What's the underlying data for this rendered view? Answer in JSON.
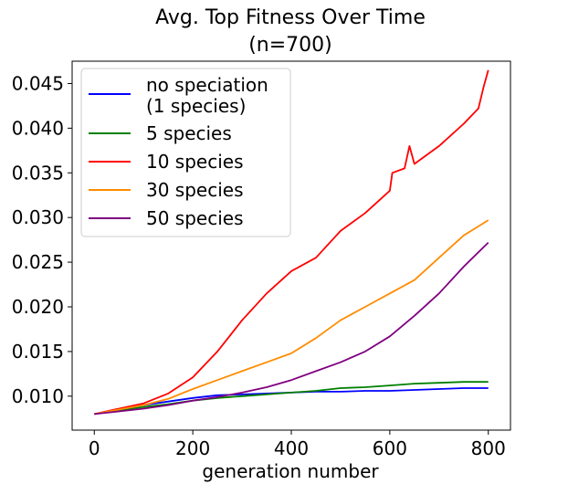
{
  "chart_data": {
    "type": "line",
    "title": "Avg. Top Fitness Over Time",
    "subtitle": "(n=700)",
    "xlabel": "generation number",
    "ylabel": "",
    "xlim": [
      -45,
      845
    ],
    "ylim": [
      0.0062,
      0.0475
    ],
    "xticks": [
      0,
      200,
      400,
      600,
      800
    ],
    "xtick_labels": [
      "0",
      "200",
      "400",
      "600",
      "800"
    ],
    "yticks": [
      0.01,
      0.015,
      0.02,
      0.025,
      0.03,
      0.035,
      0.04,
      0.045
    ],
    "ytick_labels": [
      "0.010",
      "0.015",
      "0.020",
      "0.025",
      "0.030",
      "0.035",
      "0.040",
      "0.045"
    ],
    "grid": false,
    "legend_position": "top-left",
    "series": [
      {
        "name": "no speciation\n(1 species)",
        "color": "#0000ff",
        "x": [
          0,
          50,
          100,
          150,
          200,
          250,
          300,
          350,
          400,
          450,
          500,
          550,
          600,
          650,
          700,
          750,
          800
        ],
        "y": [
          0.008,
          0.0085,
          0.009,
          0.0094,
          0.0098,
          0.0101,
          0.0102,
          0.0103,
          0.0104,
          0.0105,
          0.0105,
          0.0106,
          0.0106,
          0.0107,
          0.0108,
          0.0109,
          0.0109
        ]
      },
      {
        "name": "5 species",
        "color": "#008000",
        "x": [
          0,
          50,
          100,
          150,
          200,
          250,
          300,
          350,
          400,
          450,
          500,
          550,
          600,
          650,
          700,
          750,
          800
        ],
        "y": [
          0.008,
          0.0084,
          0.0088,
          0.0091,
          0.0095,
          0.0098,
          0.01,
          0.0102,
          0.0104,
          0.0106,
          0.0109,
          0.011,
          0.0112,
          0.0114,
          0.0115,
          0.0116,
          0.0116
        ]
      },
      {
        "name": "10 species",
        "color": "#ff0000",
        "x": [
          0,
          50,
          100,
          150,
          200,
          250,
          300,
          350,
          400,
          450,
          500,
          550,
          600,
          605,
          630,
          640,
          650,
          700,
          750,
          780,
          790,
          800
        ],
        "y": [
          0.008,
          0.0086,
          0.0092,
          0.0103,
          0.0121,
          0.015,
          0.0185,
          0.0215,
          0.024,
          0.0255,
          0.0285,
          0.0305,
          0.033,
          0.035,
          0.0355,
          0.038,
          0.036,
          0.038,
          0.0405,
          0.0422,
          0.0445,
          0.0465
        ]
      },
      {
        "name": "30 species",
        "color": "#ff8c00",
        "x": [
          0,
          50,
          100,
          150,
          200,
          250,
          300,
          350,
          400,
          450,
          500,
          550,
          600,
          650,
          700,
          750,
          800
        ],
        "y": [
          0.008,
          0.0085,
          0.009,
          0.0097,
          0.0108,
          0.0118,
          0.0128,
          0.0138,
          0.0148,
          0.0165,
          0.0185,
          0.02,
          0.0215,
          0.023,
          0.0255,
          0.028,
          0.0297
        ]
      },
      {
        "name": "50 species",
        "color": "#800080",
        "x": [
          0,
          50,
          100,
          150,
          200,
          250,
          300,
          350,
          400,
          450,
          500,
          550,
          600,
          650,
          700,
          750,
          800
        ],
        "y": [
          0.008,
          0.0083,
          0.0086,
          0.009,
          0.0095,
          0.0099,
          0.0104,
          0.011,
          0.0118,
          0.0128,
          0.0138,
          0.015,
          0.0167,
          0.019,
          0.0215,
          0.0245,
          0.0272
        ]
      }
    ]
  }
}
